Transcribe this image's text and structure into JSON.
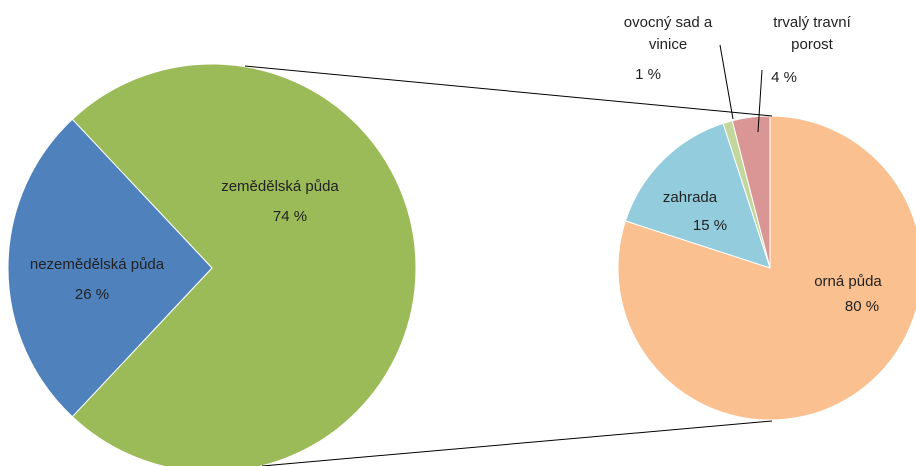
{
  "chart_data": [
    {
      "type": "pie",
      "categories": [
        "nezemědělská půda",
        "zemědělská půda"
      ],
      "values": [
        26,
        74
      ],
      "value_labels": [
        "26 %",
        "74 %"
      ],
      "colors": [
        "#4f81bd",
        "#9bbb59"
      ]
    },
    {
      "type": "pie",
      "categories": [
        "orná půda",
        "zahrada",
        "ovocný sad a vinice",
        "trvalý travní porost"
      ],
      "values": [
        80,
        15,
        1,
        4
      ],
      "value_labels": [
        "80 %",
        "15 %",
        "1 %",
        "4 %"
      ],
      "colors": [
        "#fac090",
        "#93cddd",
        "#c3d69b",
        "#d99694"
      ]
    }
  ]
}
